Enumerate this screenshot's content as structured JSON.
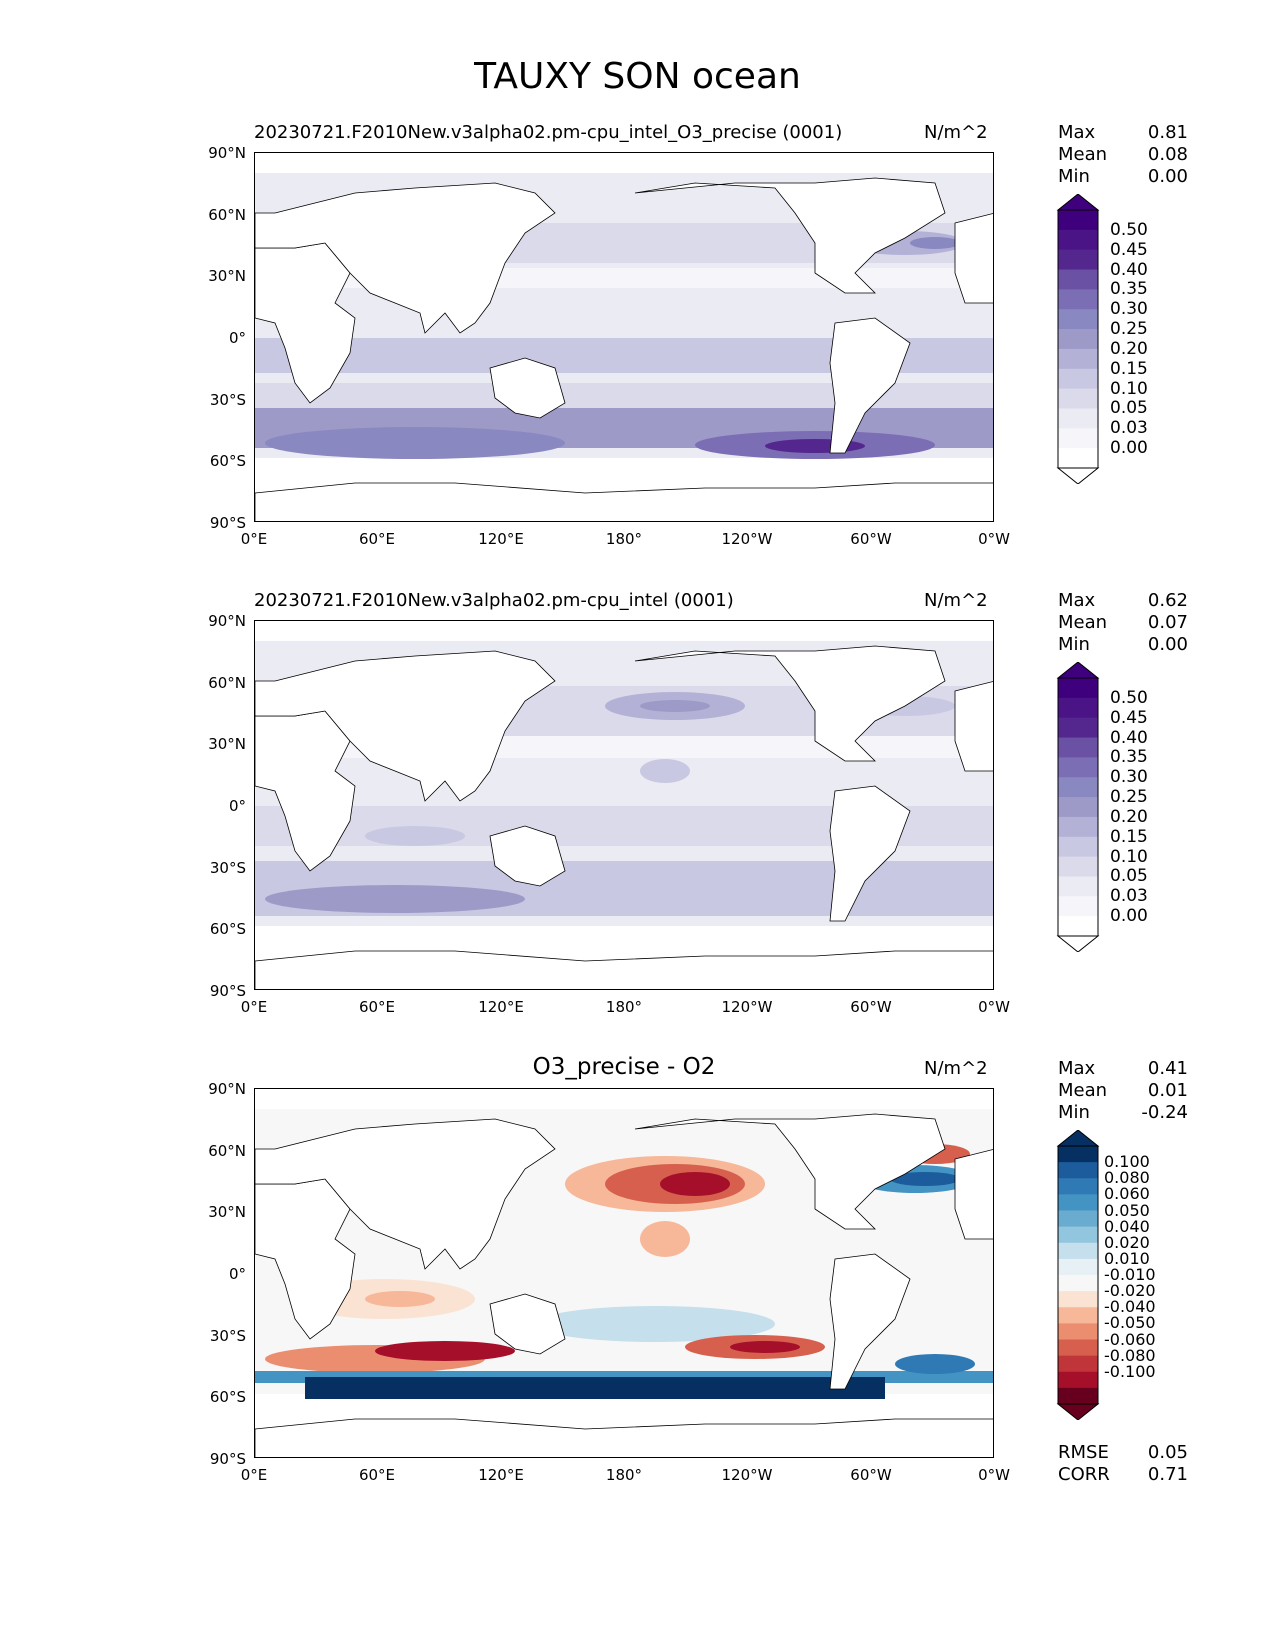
{
  "title": "TAUXY SON ocean",
  "lat_ticks": [
    "90°N",
    "60°N",
    "30°N",
    "0°",
    "30°S",
    "60°S",
    "90°S"
  ],
  "lon_ticks": [
    "0°E",
    "60°E",
    "120°E",
    "180°",
    "120°W",
    "60°W",
    "0°W"
  ],
  "panels": [
    {
      "title": "20230721.F2010New.v3alpha02.pm-cpu_intel_O3_precise (0001)",
      "units": "N/m^2",
      "stats": {
        "max_label": "Max",
        "max": "0.81",
        "mean_label": "Mean",
        "mean": "0.08",
        "min_label": "Min",
        "min": "0.00"
      },
      "colorbar": {
        "labels": [
          "0.50",
          "0.45",
          "0.40",
          "0.35",
          "0.30",
          "0.25",
          "0.20",
          "0.15",
          "0.10",
          "0.05",
          "0.03",
          "0.00"
        ],
        "colors": [
          "#3f007d",
          "#4a1486",
          "#54278f",
          "#6a51a3",
          "#7b6eb4",
          "#8a88c1",
          "#9e9ac8",
          "#b3b1d5",
          "#c9c8e2",
          "#dadaeb",
          "#ebebf4",
          "#f6f5fa",
          "#ffffff"
        ]
      }
    },
    {
      "title": "20230721.F2010New.v3alpha02.pm-cpu_intel (0001)",
      "units": "N/m^2",
      "stats": {
        "max_label": "Max",
        "max": "0.62",
        "mean_label": "Mean",
        "mean": "0.07",
        "min_label": "Min",
        "min": "0.00"
      },
      "colorbar": {
        "labels": [
          "0.50",
          "0.45",
          "0.40",
          "0.35",
          "0.30",
          "0.25",
          "0.20",
          "0.15",
          "0.10",
          "0.05",
          "0.03",
          "0.00"
        ],
        "colors": [
          "#3f007d",
          "#4a1486",
          "#54278f",
          "#6a51a3",
          "#7b6eb4",
          "#8a88c1",
          "#9e9ac8",
          "#b3b1d5",
          "#c9c8e2",
          "#dadaeb",
          "#ebebf4",
          "#f6f5fa",
          "#ffffff"
        ]
      }
    },
    {
      "title": "O3_precise - O2",
      "units": "N/m^2",
      "stats": {
        "max_label": "Max",
        "max": "0.41",
        "mean_label": "Mean",
        "mean": "0.01",
        "min_label": "Min",
        "min": "-0.24"
      },
      "colorbar": {
        "labels": [
          "0.100",
          "0.080",
          "0.060",
          "0.050",
          "0.040",
          "0.020",
          "0.010",
          "-0.010",
          "-0.020",
          "-0.040",
          "-0.050",
          "-0.060",
          "-0.080",
          "-0.100"
        ],
        "colors": [
          "#053061",
          "#1c5c9c",
          "#2f79b5",
          "#4393c3",
          "#6aacd0",
          "#92c5de",
          "#c5dfec",
          "#e7f0f5",
          "#f7f7f7",
          "#fbe3d4",
          "#f7b799",
          "#eb8e70",
          "#d6604d",
          "#c0353a",
          "#a50f2a",
          "#67001f"
        ]
      },
      "rmse_label": "RMSE",
      "rmse": "0.05",
      "corr_label": "CORR",
      "corr": "0.71"
    }
  ]
}
